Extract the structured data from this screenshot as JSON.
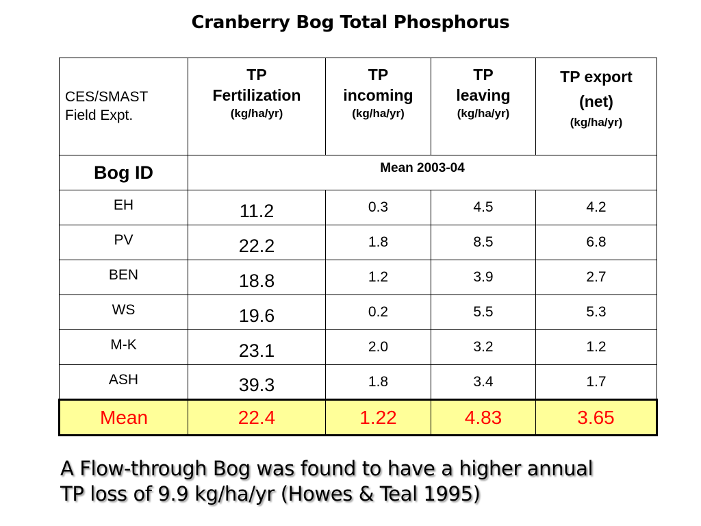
{
  "title": "Cranberry Bog Total Phosphorus",
  "table": {
    "header": {
      "field_expt": [
        "CES/SMAST",
        "Field Expt."
      ],
      "fertilization": {
        "lines": [
          "TP",
          "Fertilization"
        ],
        "unit": "(kg/ha/yr)"
      },
      "incoming": {
        "lines": [
          "TP",
          "incoming"
        ],
        "unit": "(kg/ha/yr)"
      },
      "leaving": {
        "lines": [
          "TP",
          "leaving"
        ],
        "unit": "(kg/ha/yr)"
      },
      "export": {
        "lines": [
          "TP export",
          "(net)"
        ],
        "unit": "(kg/ha/yr)"
      }
    },
    "bog_id_label": "Bog ID",
    "period_label": "Mean  2003-04",
    "rows": [
      {
        "bog": "EH",
        "fertilization": "11.2",
        "incoming": "0.3",
        "leaving": "4.5",
        "export": "4.2"
      },
      {
        "bog": "PV",
        "fertilization": "22.2",
        "incoming": "1.8",
        "leaving": "8.5",
        "export": "6.8"
      },
      {
        "bog": "BEN",
        "fertilization": "18.8",
        "incoming": "1.2",
        "leaving": "3.9",
        "export": "2.7"
      },
      {
        "bog": "WS",
        "fertilization": "19.6",
        "incoming": "0.2",
        "leaving": "5.5",
        "export": "5.3"
      },
      {
        "bog": "M-K",
        "fertilization": "23.1",
        "incoming": "2.0",
        "leaving": "3.2",
        "export": "1.2"
      },
      {
        "bog": "ASH",
        "fertilization": "39.3",
        "incoming": "1.8",
        "leaving": "3.4",
        "export": "1.7"
      }
    ],
    "mean_row": {
      "label": "Mean",
      "fertilization": "22.4",
      "incoming": "1.22",
      "leaving": "4.83",
      "export": "3.65"
    }
  },
  "footnote": [
    "A Flow-through Bog was found to have a higher annual",
    "TP loss of 9.9 kg/ha/yr (Howes & Teal 1995)"
  ],
  "colors": {
    "mean_row_bg": "#ffff99",
    "mean_row_text": "#ff0000"
  }
}
